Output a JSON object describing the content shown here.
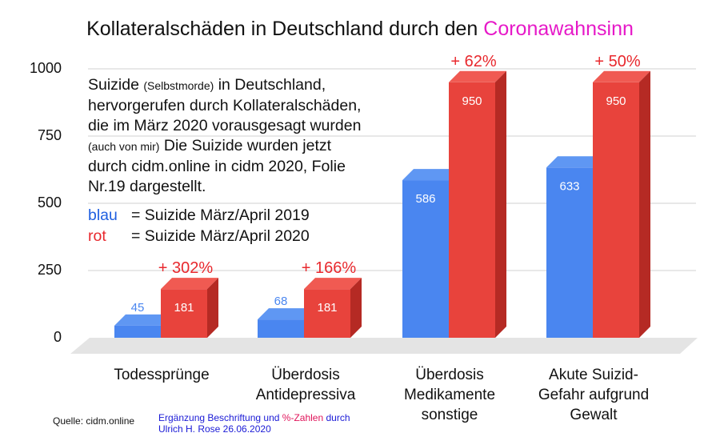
{
  "chart_data": {
    "type": "bar",
    "title_main": "Kollateralschäden in Deutschland durch den",
    "title_highlight": "Coronawahnsinn",
    "categories": [
      "Todessprünge",
      "Überdosis Antidepressiva",
      "Überdosis Medikamente sonstige",
      "Akute Suizid-Gefahr aufgrund Gewalt"
    ],
    "category_lines": [
      [
        "Todessprünge"
      ],
      [
        "Überdosis",
        "Antidepressiva"
      ],
      [
        "Überdosis",
        "Medikamente",
        "sonstige"
      ],
      [
        "Akute Suizid-",
        "Gefahr aufgrund",
        "Gewalt"
      ]
    ],
    "series": [
      {
        "name": "blau = Suizide März/April 2019",
        "values": [
          45,
          68,
          586,
          633
        ]
      },
      {
        "name": "rot = Suizide März/April 2020",
        "values": [
          181,
          181,
          950,
          950
        ]
      }
    ],
    "value_labels_2019": [
      "45",
      "68",
      "586",
      "633"
    ],
    "value_labels_2020": [
      "181",
      "181",
      "950",
      "950"
    ],
    "percent_labels": [
      "+ 302%",
      "+ 166%",
      "+ 62%",
      "+ 50%"
    ],
    "ylim": [
      0,
      1000
    ],
    "yticks": [
      0,
      250,
      500,
      750,
      1000
    ],
    "ytick_labels": [
      "0",
      "250",
      "500",
      "750",
      "1000"
    ],
    "xlabel": "",
    "ylabel": "",
    "grid": true,
    "colors": {
      "blue": "#4a86f0",
      "blue_top": "#5f97f3",
      "red": "#e8433c",
      "red_top": "#f05a52",
      "red_side": "#b52a24",
      "percent": "#e8282d",
      "floor": "#e4e4e4",
      "grid": "#d0d0d0",
      "title_highlight": "#e619c8"
    }
  },
  "annotation": {
    "lines": [
      {
        "text": "Suizide ",
        "small": "(Selbstmorde)",
        "rest": " in Deutschland,"
      },
      {
        "text": "hervorgerufen durch Kollateralschäden,",
        "small": "",
        "rest": ""
      },
      {
        "text": "die im März 2020 vorausgesagt wurden",
        "small": "",
        "rest": ""
      },
      {
        "text": "",
        "small": "(auch von mir)",
        "rest": " Die Suizide wurden jetzt"
      },
      {
        "text": "durch cidm.online in cidm 2020, Folie",
        "small": "",
        "rest": ""
      },
      {
        "text": "Nr.19 dargestellt.",
        "small": "",
        "rest": ""
      }
    ]
  },
  "legend": {
    "blue_key": "blau",
    "blue_text": "= Suizide März/April 2019",
    "red_key": "rot",
    "red_text": "= Suizide März/April 2020"
  },
  "footer": {
    "source": "Quelle: cidm.online",
    "credit_part1": "Ergänzung Beschriftung und ",
    "credit_pct": "%-Zahlen",
    "credit_part2": " durch",
    "credit_line2": "Ulrich H. Rose  26.06.2020"
  }
}
